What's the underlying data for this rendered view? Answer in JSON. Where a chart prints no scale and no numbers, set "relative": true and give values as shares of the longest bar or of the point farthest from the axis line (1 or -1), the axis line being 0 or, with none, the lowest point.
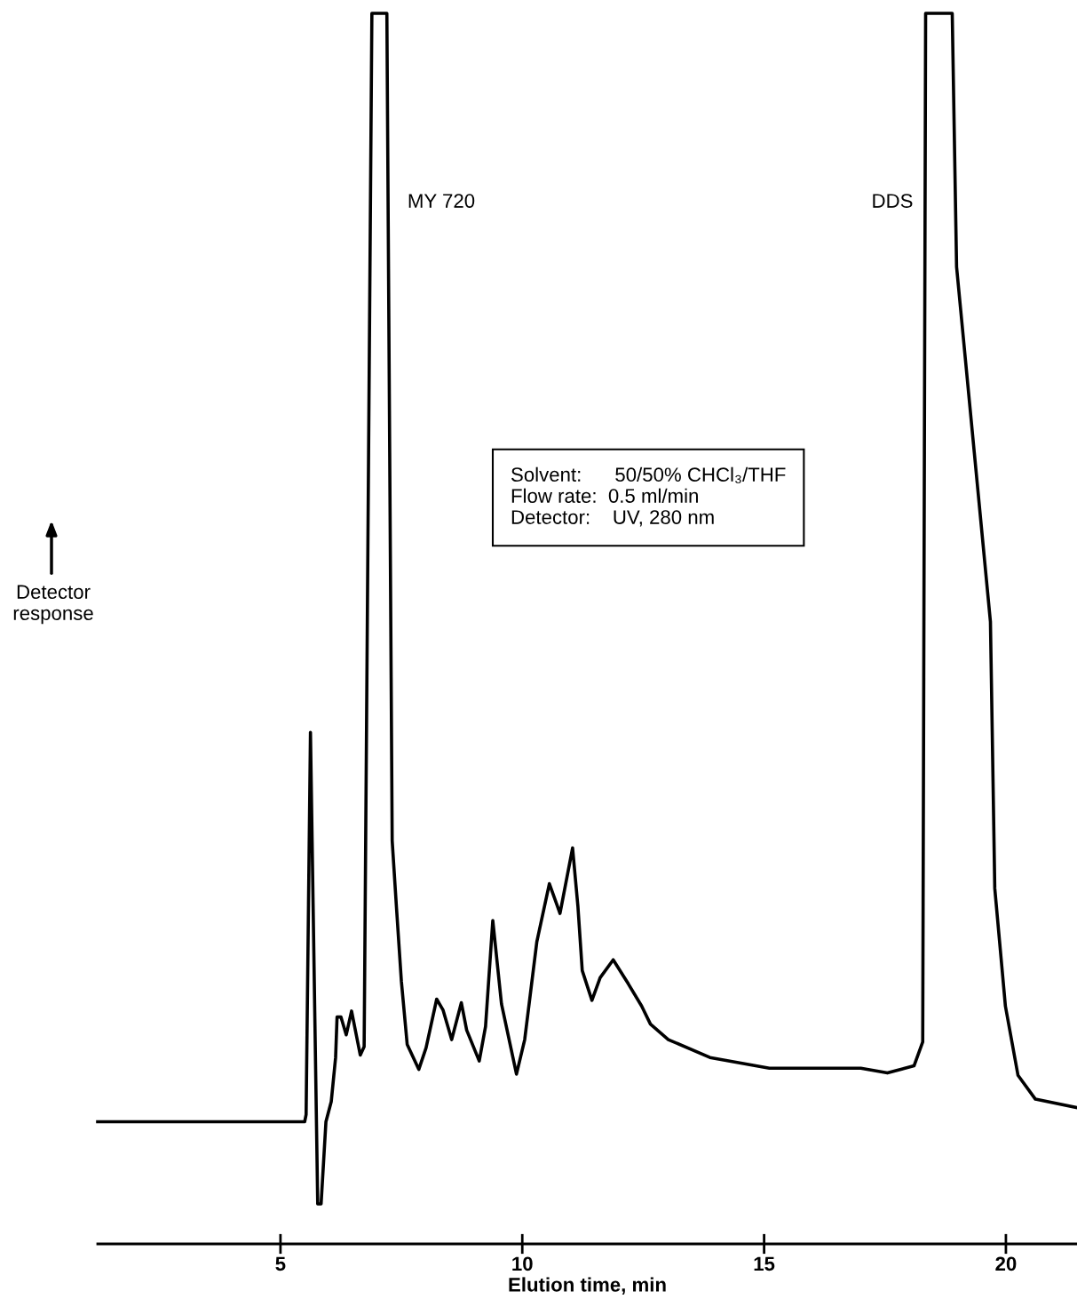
{
  "chart_data": {
    "type": "line",
    "relative": true,
    "xlabel": "Elution time, min",
    "ylabel": "Detector\nresponse",
    "xlim": [
      1.22,
      21.47
    ],
    "xticks": [
      5,
      10,
      15,
      20
    ],
    "grid": false,
    "legend": false,
    "marker": "none",
    "line_style": "solid",
    "series": [
      {
        "color": "#000000",
        "x": [
          1.22,
          5.5,
          5.53,
          5.62,
          5.77,
          5.84,
          5.94,
          6.05,
          6.14,
          6.17,
          6.25,
          6.36,
          6.47,
          6.65,
          6.73,
          6.89,
          7.2,
          7.31,
          7.4,
          7.5,
          7.62,
          7.86,
          8.01,
          8.23,
          8.36,
          8.54,
          8.74,
          8.85,
          9.11,
          9.24,
          9.39,
          9.57,
          9.88,
          10.05,
          10.3,
          10.56,
          10.78,
          11.04,
          11.15,
          11.24,
          11.44,
          11.61,
          11.88,
          12.19,
          12.47,
          12.65,
          13.02,
          13.88,
          15.11,
          17.0,
          17.55,
          18.1,
          18.28,
          18.34,
          18.89,
          18.98,
          19.68,
          19.77,
          19.99,
          20.25,
          20.61,
          21.46
        ],
        "values": [
          0.069,
          0.069,
          0.075,
          0.396,
          0.0,
          0.0,
          0.069,
          0.086,
          0.123,
          0.157,
          0.157,
          0.142,
          0.162,
          0.125,
          0.132,
          1.0,
          1.0,
          0.305,
          0.248,
          0.187,
          0.134,
          0.113,
          0.131,
          0.172,
          0.163,
          0.138,
          0.169,
          0.146,
          0.12,
          0.149,
          0.238,
          0.168,
          0.109,
          0.138,
          0.22,
          0.269,
          0.244,
          0.299,
          0.25,
          0.196,
          0.171,
          0.19,
          0.205,
          0.185,
          0.166,
          0.151,
          0.138,
          0.123,
          0.114,
          0.114,
          0.11,
          0.116,
          0.136,
          1.0,
          1.0,
          0.787,
          0.489,
          0.265,
          0.166,
          0.108,
          0.088,
          0.081
        ]
      }
    ],
    "annotations": [
      "MY 720",
      "DDS",
      "Solvent:      50/50% CHCl₃/THF",
      "Flow rate:  0.5 ml/min",
      "Detector:    UV, 280 nm"
    ]
  }
}
